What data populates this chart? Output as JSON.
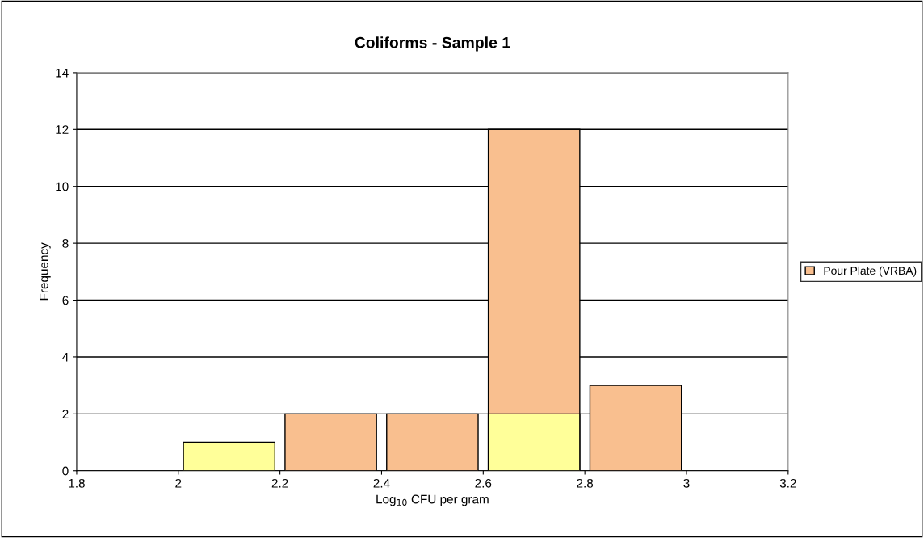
{
  "chart_data": {
    "type": "histogram",
    "title": "Coliforms - Sample 1",
    "xlabel": "Log$_{10}$ CFU per gram",
    "ylabel": "Frequency",
    "bins": [
      2.0,
      2.2,
      2.4,
      2.6,
      2.8,
      3.0
    ],
    "series": [
      {
        "name": "Pour Plate (VRBA)",
        "color": "#f9bf8f",
        "values": [
          null,
          2,
          2,
          12,
          3
        ]
      },
      {
        "color": "#ffff99",
        "values": [
          1,
          null,
          null,
          2,
          null
        ]
      }
    ],
    "xlim": [
      1.8,
      3.2
    ],
    "xticks": [
      1.8,
      2,
      2.2,
      2.4,
      2.6,
      2.8,
      3,
      3.2
    ],
    "ylim": [
      0,
      14
    ],
    "yticks": [
      0,
      2,
      4,
      6,
      8,
      10,
      12,
      14
    ],
    "grid": "y",
    "legend": "right"
  }
}
